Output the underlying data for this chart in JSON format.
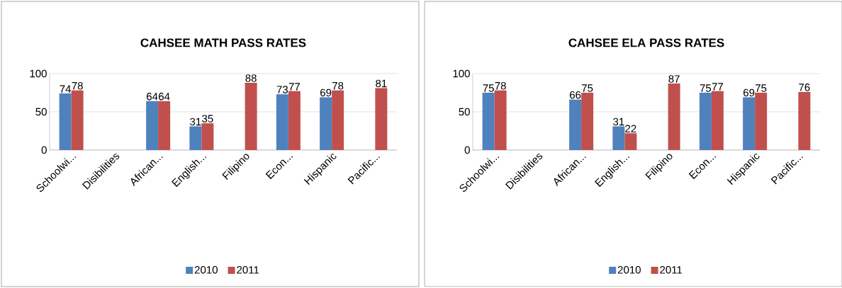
{
  "chart_data": [
    {
      "type": "bar",
      "title": "CAHSEE MATH PASS RATES",
      "categories": [
        "Schoolwi...",
        "Disibilities",
        "African...",
        "English...",
        "Filipino",
        "Econ...",
        "Hispanic",
        "Pacific..."
      ],
      "series": [
        {
          "name": "2010",
          "color": "#4f81bd",
          "values": [
            74,
            null,
            64,
            31,
            null,
            73,
            69,
            null
          ]
        },
        {
          "name": "2011",
          "color": "#c0504d",
          "values": [
            78,
            null,
            64,
            35,
            88,
            77,
            78,
            81
          ]
        }
      ],
      "ylim": [
        0,
        100
      ],
      "yticks": [
        0,
        50,
        100
      ],
      "grid": "y",
      "legend": "bottom",
      "data_labels": true
    },
    {
      "type": "bar",
      "title": "CAHSEE ELA PASS RATES",
      "categories": [
        "Schoolwi...",
        "Disibilities",
        "African...",
        "English...",
        "Filipino",
        "Econ...",
        "Hispanic",
        "Pacific..."
      ],
      "series": [
        {
          "name": "2010",
          "color": "#4f81bd",
          "values": [
            75,
            null,
            66,
            31,
            null,
            75,
            69,
            null
          ]
        },
        {
          "name": "2011",
          "color": "#c0504d",
          "values": [
            78,
            null,
            75,
            22,
            87,
            77,
            75,
            76
          ]
        }
      ],
      "ylim": [
        0,
        100
      ],
      "yticks": [
        0,
        50,
        100
      ],
      "grid": "y",
      "legend": "bottom",
      "data_labels": true
    }
  ]
}
